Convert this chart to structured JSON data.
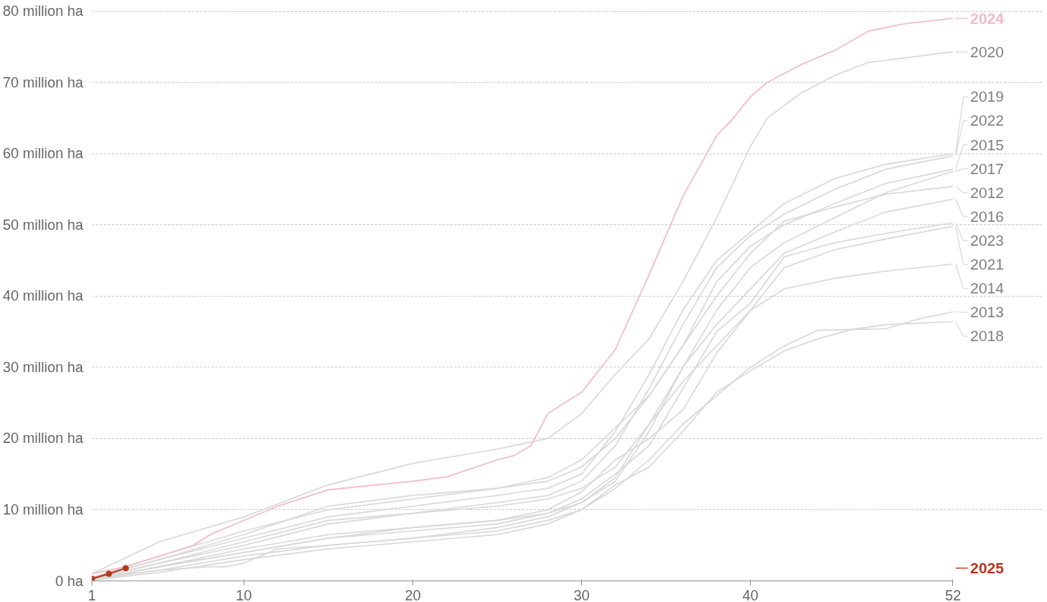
{
  "chart_data": {
    "type": "line",
    "xlim": [
      1,
      52
    ],
    "ylim": [
      0,
      80
    ],
    "xticks": [
      1,
      10,
      20,
      30,
      40,
      52
    ],
    "yticks": [
      {
        "value": 0,
        "label": "0 ha"
      },
      {
        "value": 10,
        "label": "10 million ha"
      },
      {
        "value": 20,
        "label": "20 million ha"
      },
      {
        "value": 30,
        "label": "30 million ha"
      },
      {
        "value": 40,
        "label": "40 million ha"
      },
      {
        "value": 50,
        "label": "50 million ha"
      },
      {
        "value": 60,
        "label": "60 million ha"
      },
      {
        "value": 70,
        "label": "70 million ha"
      },
      {
        "value": 80,
        "label": "80 million ha"
      }
    ],
    "grid": "y",
    "legend": "right",
    "line_style": "solid",
    "series": [
      {
        "name": "2012",
        "color": "#d9d9d9",
        "x": [
          1,
          5,
          10,
          15,
          20,
          25,
          28,
          30,
          32,
          34,
          36,
          38,
          40,
          42,
          45,
          48,
          52
        ],
        "values": [
          0.4,
          3,
          6.5,
          10.5,
          12,
          13,
          14,
          16,
          20,
          26,
          33,
          40,
          46,
          50.5,
          52.5,
          54.3,
          55.4
        ]
      },
      {
        "name": "2013",
        "color": "#d9d9d9",
        "x": [
          1,
          5,
          10,
          15,
          20,
          25,
          28,
          30,
          32,
          34,
          36,
          38,
          40,
          42,
          44,
          46,
          48,
          50,
          52
        ],
        "values": [
          0.2,
          1.5,
          3.5,
          5,
          6,
          7,
          8.5,
          10,
          13,
          17,
          22,
          26,
          30,
          33,
          35.2,
          35.3,
          35.4,
          36.8,
          37.8
        ]
      },
      {
        "name": "2014",
        "color": "#d9d9d9",
        "x": [
          1,
          5,
          10,
          15,
          20,
          25,
          28,
          30,
          32,
          34,
          36,
          38,
          40,
          42,
          45,
          48,
          52
        ],
        "values": [
          0.2,
          2,
          4,
          6,
          7.5,
          8.5,
          10,
          12.5,
          17,
          20,
          24,
          32,
          38,
          41,
          42.5,
          43.5,
          44.5
        ]
      },
      {
        "name": "2015",
        "color": "#d9d9d9",
        "x": [
          1,
          5,
          10,
          15,
          20,
          25,
          28,
          30,
          32,
          34,
          36,
          38,
          40,
          42,
          45,
          48,
          52
        ],
        "values": [
          0.5,
          3.5,
          7,
          10,
          11.5,
          13,
          14.5,
          17,
          21.5,
          26,
          33,
          42,
          47,
          50,
          53,
          55.8,
          57.8
        ]
      },
      {
        "name": "2016",
        "color": "#d9d9d9",
        "x": [
          1,
          5,
          10,
          15,
          20,
          25,
          28,
          30,
          32,
          34,
          36,
          38,
          40,
          42,
          45,
          48,
          52
        ],
        "values": [
          0.3,
          2.5,
          5.5,
          8.5,
          9.5,
          10.5,
          11.5,
          13,
          16,
          22,
          30,
          36,
          41,
          46,
          49,
          51.8,
          53.6
        ]
      },
      {
        "name": "2017",
        "color": "#d9d9d9",
        "x": [
          1,
          5,
          10,
          15,
          20,
          25,
          28,
          30,
          32,
          34,
          36,
          38,
          40,
          42,
          45,
          48,
          52
        ],
        "values": [
          0.2,
          2,
          4,
          6,
          7,
          8,
          9.5,
          11,
          14,
          21,
          30,
          38,
          44,
          47.5,
          51,
          54.5,
          57.5
        ]
      },
      {
        "name": "2018",
        "color": "#d9d9d9",
        "x": [
          1,
          5,
          10,
          15,
          20,
          25,
          28,
          30,
          32,
          34,
          36,
          38,
          40,
          42,
          44,
          46,
          48,
          52
        ],
        "values": [
          0.1,
          1.2,
          3,
          4.5,
          5.5,
          6.5,
          8,
          10,
          13.5,
          16,
          21,
          26.5,
          29.5,
          32.3,
          34,
          35.3,
          36,
          36.4
        ]
      },
      {
        "name": "2019",
        "color": "#d9d9d9",
        "x": [
          1,
          5,
          10,
          15,
          20,
          25,
          28,
          30,
          32,
          34,
          36,
          38,
          40,
          42,
          45,
          48,
          52
        ],
        "values": [
          0.5,
          3,
          6,
          9,
          10.5,
          12,
          13,
          15,
          21,
          29,
          38,
          45,
          49,
          53,
          56.5,
          58.5,
          60
        ]
      },
      {
        "name": "2020",
        "color": "#d9d9d9",
        "x": [
          1,
          5,
          10,
          15,
          20,
          25,
          28,
          30,
          32,
          34,
          36,
          38,
          40,
          41,
          43,
          45,
          47,
          52
        ],
        "values": [
          1,
          5.5,
          9,
          13.5,
          16.5,
          18.5,
          20,
          23.5,
          29,
          34,
          42,
          51,
          61,
          65,
          68.5,
          71,
          72.8,
          74.3
        ]
      },
      {
        "name": "2021",
        "color": "#d9d9d9",
        "x": [
          1,
          5,
          8,
          9,
          10,
          12,
          15,
          20,
          25,
          28,
          30,
          32,
          34,
          36,
          38,
          40,
          42,
          45,
          48,
          52
        ],
        "values": [
          0.3,
          1.5,
          2,
          2,
          2.5,
          4.5,
          5,
          6,
          7.5,
          9,
          11,
          14.5,
          22,
          28,
          33,
          38,
          44,
          46.5,
          48,
          49.8
        ]
      },
      {
        "name": "2022",
        "color": "#d9d9d9",
        "x": [
          1,
          5,
          10,
          15,
          20,
          25,
          28,
          30,
          32,
          34,
          36,
          38,
          40,
          42,
          45,
          48,
          52
        ],
        "values": [
          0.3,
          2.5,
          5,
          8,
          9.5,
          11,
          12,
          14,
          19,
          27,
          36,
          44,
          48.5,
          51.5,
          55,
          57.8,
          59.7
        ]
      },
      {
        "name": "2023",
        "color": "#d9d9d9",
        "x": [
          1,
          5,
          10,
          15,
          20,
          25,
          28,
          30,
          32,
          34,
          36,
          38,
          40,
          42,
          45,
          48,
          52
        ],
        "values": [
          0.2,
          2,
          4.5,
          6.5,
          7.5,
          8.5,
          9.5,
          11.5,
          15,
          19,
          27,
          35,
          39,
          45.5,
          47.5,
          48.8,
          50.3
        ]
      },
      {
        "name": "2024",
        "color": "#f4b9c6",
        "x": [
          1,
          3,
          5,
          7,
          8,
          10,
          12,
          15,
          20,
          22,
          25,
          26,
          27,
          28,
          30,
          32,
          34,
          36,
          38,
          39,
          40,
          41,
          43,
          45,
          47,
          49,
          52
        ],
        "values": [
          1,
          2,
          3.5,
          5,
          6.5,
          8.5,
          10.5,
          12.8,
          14,
          14.6,
          17,
          17.6,
          19,
          23.5,
          26.5,
          32.5,
          43,
          54,
          62.5,
          65,
          68,
          70,
          72.5,
          74.5,
          77.2,
          78.2,
          79
        ]
      },
      {
        "name": "2025",
        "color": "#b5381a",
        "marker": "circle",
        "x": [
          1,
          2,
          3
        ],
        "values": [
          0.3,
          1,
          1.8
        ]
      }
    ]
  }
}
